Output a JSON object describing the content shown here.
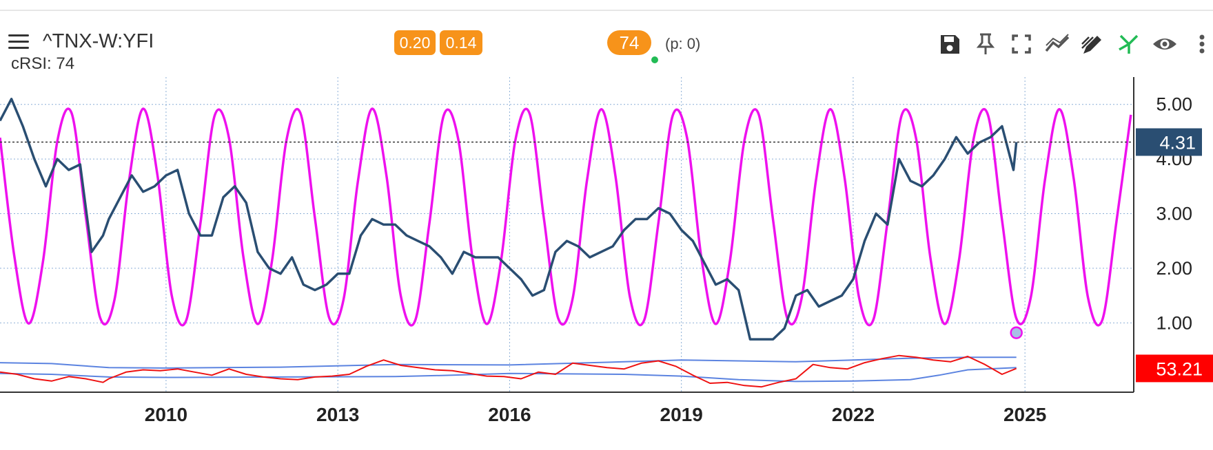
{
  "header": {
    "symbol": "^TNX-W:YFI",
    "indicator_label": "cRSI: 74",
    "badge_1": "0.20",
    "badge_2": "0.14",
    "badge_3": "74",
    "period_info": "(p: 0)"
  },
  "toolbar": {
    "icons": [
      "save-icon",
      "pin-icon",
      "fullscreen-icon",
      "trend-icon",
      "draw-icon",
      "cross-icon",
      "eye-icon",
      "more-icon"
    ]
  },
  "colors": {
    "price_line": "#2a4e72",
    "cycle_line": "#ee11ee",
    "crsi_line": "#ee1111",
    "bands": "#5b83e0",
    "badge": "#f7931a",
    "price_tag": "#2a4e72",
    "crsi_tag": "#ff0000",
    "grid": "#8aaed6"
  },
  "chart_data": {
    "type": "line",
    "xlim": [
      2007.1,
      2026.9
    ],
    "x_ticks": [
      2010,
      2013,
      2016,
      2019,
      2022,
      2025
    ],
    "x_tick_labels": [
      "2010",
      "2013",
      "2016",
      "2019",
      "2022",
      "2025"
    ],
    "upper_pane": {
      "ylim": [
        0.55,
        5.5
      ],
      "y_ticks": [
        1.0,
        2.0,
        3.0,
        4.0,
        5.0
      ],
      "y_tick_labels": [
        "1.00",
        "2.00",
        "3.00",
        "4.00",
        "5.00"
      ],
      "last_value_label": "4.31",
      "last_value": 4.31,
      "series": [
        {
          "key": "price",
          "x": [
            2007.1,
            2007.3,
            2007.5,
            2007.7,
            2007.9,
            2008.1,
            2008.3,
            2008.5,
            2008.7,
            2008.9,
            2009.0,
            2009.2,
            2009.4,
            2009.6,
            2009.8,
            2010.0,
            2010.2,
            2010.4,
            2010.6,
            2010.8,
            2011.0,
            2011.2,
            2011.4,
            2011.6,
            2011.8,
            2012.0,
            2012.2,
            2012.4,
            2012.6,
            2012.8,
            2013.0,
            2013.2,
            2013.4,
            2013.6,
            2013.8,
            2014.0,
            2014.2,
            2014.4,
            2014.6,
            2014.8,
            2015.0,
            2015.2,
            2015.4,
            2015.6,
            2015.8,
            2016.0,
            2016.2,
            2016.4,
            2016.6,
            2016.8,
            2017.0,
            2017.2,
            2017.4,
            2017.6,
            2017.8,
            2018.0,
            2018.2,
            2018.4,
            2018.6,
            2018.8,
            2019.0,
            2019.2,
            2019.4,
            2019.6,
            2019.8,
            2020.0,
            2020.2,
            2020.4,
            2020.6,
            2020.8,
            2021.0,
            2021.2,
            2021.4,
            2021.6,
            2021.8,
            2022.0,
            2022.2,
            2022.4,
            2022.6,
            2022.8,
            2023.0,
            2023.2,
            2023.4,
            2023.6,
            2023.8,
            2024.0,
            2024.2,
            2024.4,
            2024.6,
            2024.8,
            2024.85
          ],
          "y": [
            4.7,
            5.1,
            4.6,
            4.0,
            3.5,
            4.0,
            3.8,
            3.9,
            2.3,
            2.6,
            2.9,
            3.3,
            3.7,
            3.4,
            3.5,
            3.7,
            3.8,
            3.0,
            2.6,
            2.6,
            3.3,
            3.5,
            3.2,
            2.3,
            2.0,
            1.9,
            2.2,
            1.7,
            1.6,
            1.7,
            1.9,
            1.9,
            2.6,
            2.9,
            2.8,
            2.8,
            2.6,
            2.5,
            2.4,
            2.2,
            1.9,
            2.3,
            2.2,
            2.2,
            2.2,
            2.0,
            1.8,
            1.5,
            1.6,
            2.3,
            2.5,
            2.4,
            2.2,
            2.3,
            2.4,
            2.7,
            2.9,
            2.9,
            3.1,
            3.0,
            2.7,
            2.5,
            2.1,
            1.7,
            1.8,
            1.6,
            0.7,
            0.7,
            0.7,
            0.9,
            1.5,
            1.6,
            1.3,
            1.4,
            1.5,
            1.8,
            2.5,
            3.0,
            2.8,
            4.0,
            3.6,
            3.5,
            3.7,
            4.0,
            4.4,
            4.1,
            4.3,
            4.4,
            4.6,
            3.8,
            4.31
          ]
        },
        {
          "key": "cycle",
          "x": [
            2007.1,
            2007.35,
            2007.6,
            2007.85,
            2008.1,
            2008.35,
            2008.6,
            2008.85,
            2009.1,
            2009.35,
            2009.6,
            2009.85,
            2010.1,
            2010.35,
            2010.6,
            2010.85,
            2011.1,
            2011.35,
            2011.6,
            2011.85,
            2012.1,
            2012.35,
            2012.6,
            2012.85,
            2013.1,
            2013.35,
            2013.6,
            2013.85,
            2014.1,
            2014.35,
            2014.6,
            2014.85,
            2015.1,
            2015.35,
            2015.6,
            2015.85,
            2016.1,
            2016.35,
            2016.6,
            2016.85,
            2017.1,
            2017.35,
            2017.6,
            2017.85,
            2018.1,
            2018.35,
            2018.6,
            2018.85,
            2019.1,
            2019.35,
            2019.6,
            2019.85,
            2020.1,
            2020.35,
            2020.6,
            2020.85,
            2021.1,
            2021.35,
            2021.6,
            2021.85,
            2022.1,
            2022.35,
            2022.6,
            2022.85,
            2023.1,
            2023.35,
            2023.6,
            2023.85,
            2024.1,
            2024.35,
            2024.6,
            2024.85,
            2025.1,
            2025.35,
            2025.6,
            2025.85,
            2026.1,
            2026.35,
            2026.6,
            2026.85
          ],
          "y": [
            4.39,
            2.22,
            0.99,
            2.12,
            4.32,
            4.84,
            2.93,
            1.09,
            1.43,
            3.58,
            4.92,
            3.7,
            1.5,
            1.04,
            2.82,
            4.8,
            4.38,
            2.21,
            0.98,
            2.13,
            4.33,
            4.83,
            2.92,
            1.09,
            1.43,
            3.59,
            4.92,
            3.69,
            1.49,
            1.04,
            2.83,
            4.8,
            4.38,
            2.2,
            0.98,
            2.14,
            4.34,
            4.83,
            2.9,
            1.08,
            1.44,
            3.6,
            4.91,
            3.68,
            1.48,
            1.05,
            2.84,
            4.8,
            4.38,
            2.19,
            0.98,
            2.15,
            4.34,
            4.82,
            2.89,
            1.08,
            1.45,
            3.61,
            4.91,
            3.66,
            1.48,
            1.05,
            2.86,
            4.81,
            4.37,
            2.18,
            0.98,
            2.16,
            4.35,
            4.82,
            2.88,
            1.08,
            1.46,
            3.62,
            4.91,
            3.65,
            1.47,
            1.05,
            2.87,
            4.81
          ]
        }
      ],
      "marker": {
        "x": 2024.85,
        "y": 0.82
      }
    },
    "lower_pane": {
      "ylim": [
        0,
        100
      ],
      "last_value_label": "53.21",
      "last_value": 53.21,
      "series": [
        {
          "key": "crsi",
          "x": [
            2007.1,
            2007.4,
            2007.7,
            2008.0,
            2008.3,
            2008.6,
            2008.9,
            2009.0,
            2009.3,
            2009.6,
            2009.9,
            2010.2,
            2010.5,
            2010.8,
            2011.1,
            2011.4,
            2011.7,
            2012.0,
            2012.3,
            2012.6,
            2012.9,
            2013.2,
            2013.5,
            2013.8,
            2014.1,
            2014.4,
            2014.7,
            2015.0,
            2015.3,
            2015.6,
            2015.9,
            2016.2,
            2016.5,
            2016.8,
            2017.1,
            2017.4,
            2017.7,
            2018.0,
            2018.3,
            2018.6,
            2018.9,
            2019.2,
            2019.5,
            2019.8,
            2020.1,
            2020.4,
            2020.7,
            2021.0,
            2021.3,
            2021.6,
            2021.9,
            2022.2,
            2022.5,
            2022.8,
            2023.1,
            2023.4,
            2023.7,
            2024.0,
            2024.3,
            2024.6,
            2024.85
          ],
          "y": [
            45,
            40,
            30,
            25,
            35,
            30,
            22,
            30,
            45,
            50,
            48,
            52,
            45,
            38,
            52,
            40,
            34,
            30,
            28,
            34,
            36,
            40,
            58,
            72,
            60,
            55,
            50,
            48,
            42,
            36,
            35,
            30,
            45,
            40,
            65,
            60,
            55,
            52,
            65,
            70,
            58,
            38,
            20,
            22,
            15,
            12,
            22,
            30,
            62,
            55,
            52,
            66,
            75,
            82,
            78,
            72,
            68,
            80,
            62,
            40,
            53.21
          ]
        },
        {
          "key": "upper_band",
          "x": [
            2007.1,
            2008.0,
            2009.0,
            2010.0,
            2012.0,
            2014.0,
            2016.0,
            2018.0,
            2019.0,
            2020.0,
            2021.0,
            2022.0,
            2023.0,
            2024.0,
            2024.85
          ],
          "y": [
            66,
            64,
            55,
            54,
            56,
            62,
            61,
            68,
            72,
            70,
            68,
            72,
            76,
            78,
            78
          ]
        },
        {
          "key": "lower_band",
          "x": [
            2007.1,
            2008.0,
            2009.0,
            2010.0,
            2012.0,
            2014.0,
            2015.0,
            2016.0,
            2018.0,
            2019.0,
            2020.0,
            2021.0,
            2022.0,
            2023.0,
            2023.5,
            2024.0,
            2024.85
          ],
          "y": [
            42,
            40,
            34,
            33,
            34,
            35,
            38,
            42,
            40,
            36,
            28,
            24,
            25,
            28,
            38,
            50,
            55
          ]
        }
      ]
    }
  }
}
